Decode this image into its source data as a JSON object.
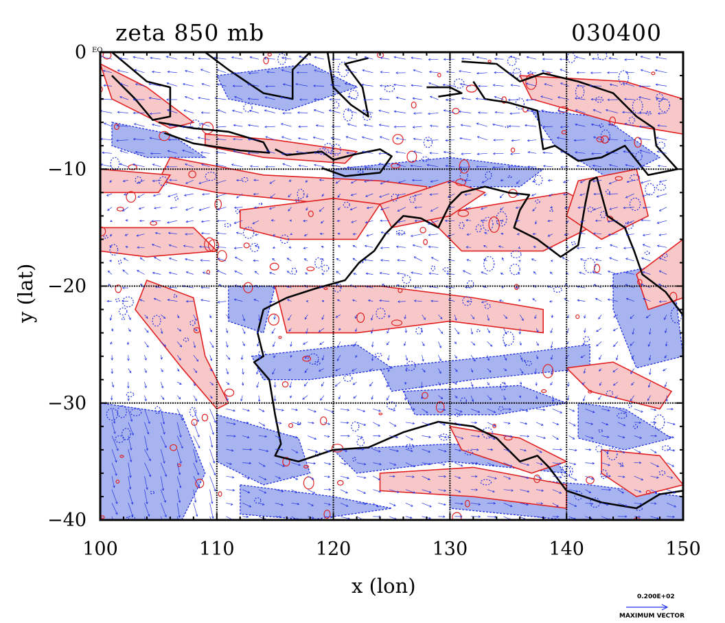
{
  "chart_data": {
    "type": "contour",
    "title": "zeta 850 mb",
    "timestamp": "030400",
    "xlabel": "x (lon)",
    "ylabel": "y (lat)",
    "xlim": [
      100,
      150
    ],
    "ylim": [
      -40,
      0
    ],
    "x_ticks": [
      100,
      110,
      120,
      130,
      140,
      150
    ],
    "y_ticks": [
      0,
      -10,
      -20,
      -30,
      -40
    ],
    "x_tick_labels": [
      "100",
      "110",
      "120",
      "130",
      "140",
      "150"
    ],
    "y_tick_labels": [
      "0",
      "−10",
      "−20",
      "−30",
      "−40"
    ],
    "equator_label": "EQ",
    "grid": true,
    "series": [
      {
        "name": "",
        "color": "#e02020",
        "fill": "#f8c8c8",
        "kind": "positive vorticity contours"
      },
      {
        "name": "",
        "color": "#2030e0",
        "fill": "#a8b4f0",
        "kind": "negative vorticity contours"
      },
      {
        "name": "",
        "color": "#2030e0",
        "kind": "wind vectors"
      }
    ],
    "reference_vector": {
      "value_label": "0.200E+02",
      "caption": "MAXIMUM VECTOR"
    }
  }
}
